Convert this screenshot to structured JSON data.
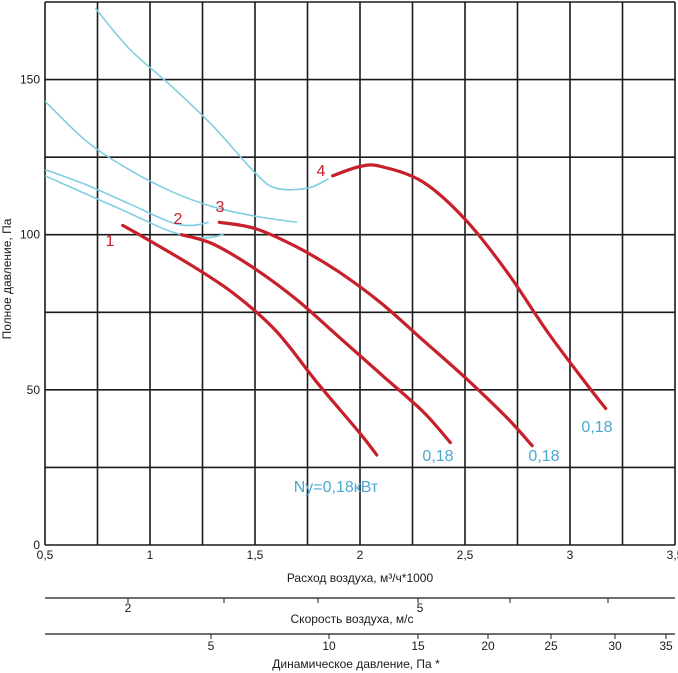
{
  "chart_data": {
    "type": "line",
    "title": "",
    "xlabel": "Расход воздуха, м³/ч*1000",
    "ylabel": "Полное давление, Па",
    "xlim": [
      0.5,
      3.5
    ],
    "ylim": [
      0,
      175
    ],
    "x_ticks": [
      "0,5",
      "1",
      "1,5",
      "2",
      "2,5",
      "3",
      "3,5"
    ],
    "y_ticks": [
      "0",
      "50",
      "100",
      "150"
    ],
    "grid": true,
    "series": [
      {
        "name": "1",
        "power_label": "Ny=0,18кВт",
        "color": "#c8202a",
        "x": [
          0.87,
          1.0,
          1.2,
          1.4,
          1.6,
          1.8,
          2.0,
          2.08
        ],
        "y": [
          103,
          98,
          90,
          81,
          69,
          52,
          36,
          29
        ]
      },
      {
        "name": "2",
        "power_label": "0,18",
        "color": "#c8202a",
        "x": [
          1.15,
          1.3,
          1.5,
          1.7,
          1.9,
          2.1,
          2.3,
          2.43
        ],
        "y": [
          100,
          97,
          89,
          79,
          67,
          55,
          43,
          33
        ]
      },
      {
        "name": "3",
        "power_label": "0,18",
        "color": "#c8202a",
        "x": [
          1.33,
          1.5,
          1.7,
          1.9,
          2.1,
          2.3,
          2.5,
          2.7,
          2.82
        ],
        "y": [
          104,
          102,
          96,
          88,
          78,
          66,
          54,
          41,
          32
        ]
      },
      {
        "name": "4",
        "power_label": "0,18",
        "color": "#c8202a",
        "x": [
          1.87,
          2.0,
          2.1,
          2.3,
          2.5,
          2.7,
          2.9,
          3.1,
          3.17
        ],
        "y": [
          119,
          122,
          122,
          117,
          105,
          88,
          68,
          50,
          44
        ]
      }
    ],
    "system_curves": [
      {
        "x": [
          0.5,
          0.7,
          0.9,
          1.1,
          1.25,
          1.35
        ],
        "y": [
          119,
          113,
          107,
          101,
          99,
          100
        ]
      },
      {
        "x": [
          0.5,
          0.7,
          0.9,
          1.1,
          1.2,
          1.28
        ],
        "y": [
          121,
          116,
          110,
          104,
          103,
          104
        ]
      },
      {
        "x": [
          0.5,
          0.7,
          0.9,
          1.1,
          1.3,
          1.5,
          1.7
        ],
        "y": [
          143,
          130,
          121,
          114,
          109,
          106,
          104
        ]
      },
      {
        "x": [
          0.74,
          0.9,
          1.1,
          1.3,
          1.5,
          1.6,
          1.75,
          1.85
        ],
        "y": [
          173,
          160,
          148,
          135,
          120,
          115,
          115,
          118
        ]
      }
    ],
    "velocity_axis": {
      "label": "Скорость воздуха, м/с",
      "ticks": [
        "2",
        "5"
      ]
    },
    "dynamic_pressure_axis": {
      "label": "Динамическое давление, Па *",
      "ticks": [
        "5",
        "10",
        "15",
        "20",
        "25",
        "30",
        "35"
      ]
    },
    "colors": {
      "fan_curve": "#c8202a",
      "system_curve": "#7fcfe0",
      "power_label": "#4aa8d0"
    }
  }
}
